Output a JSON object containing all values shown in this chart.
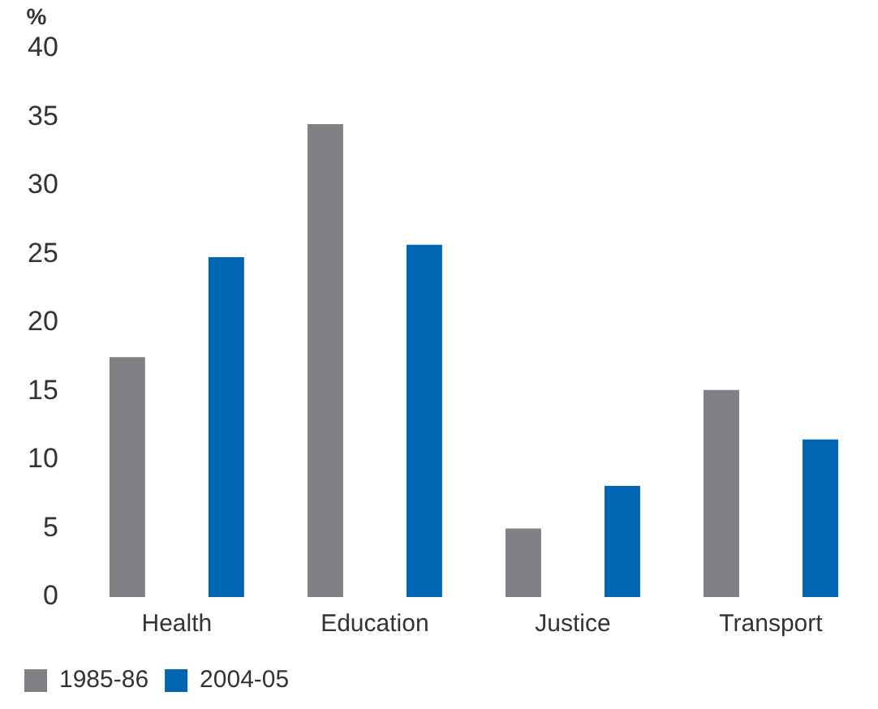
{
  "chart_data": {
    "type": "bar",
    "ylabel": "%",
    "categories": [
      "Health",
      "Education",
      "Justice",
      "Transport"
    ],
    "series": [
      {
        "name": "1985-86",
        "color": "#808184",
        "values": [
          17.5,
          34.5,
          5,
          15.1
        ]
      },
      {
        "name": "2004-05",
        "color": "#0066b3",
        "values": [
          24.8,
          25.7,
          8.1,
          11.5
        ]
      }
    ],
    "ylim": [
      0,
      40
    ],
    "yticks": [
      0,
      5,
      10,
      15,
      20,
      25,
      30,
      35,
      40
    ],
    "grid": false,
    "legend": "bottom left"
  }
}
